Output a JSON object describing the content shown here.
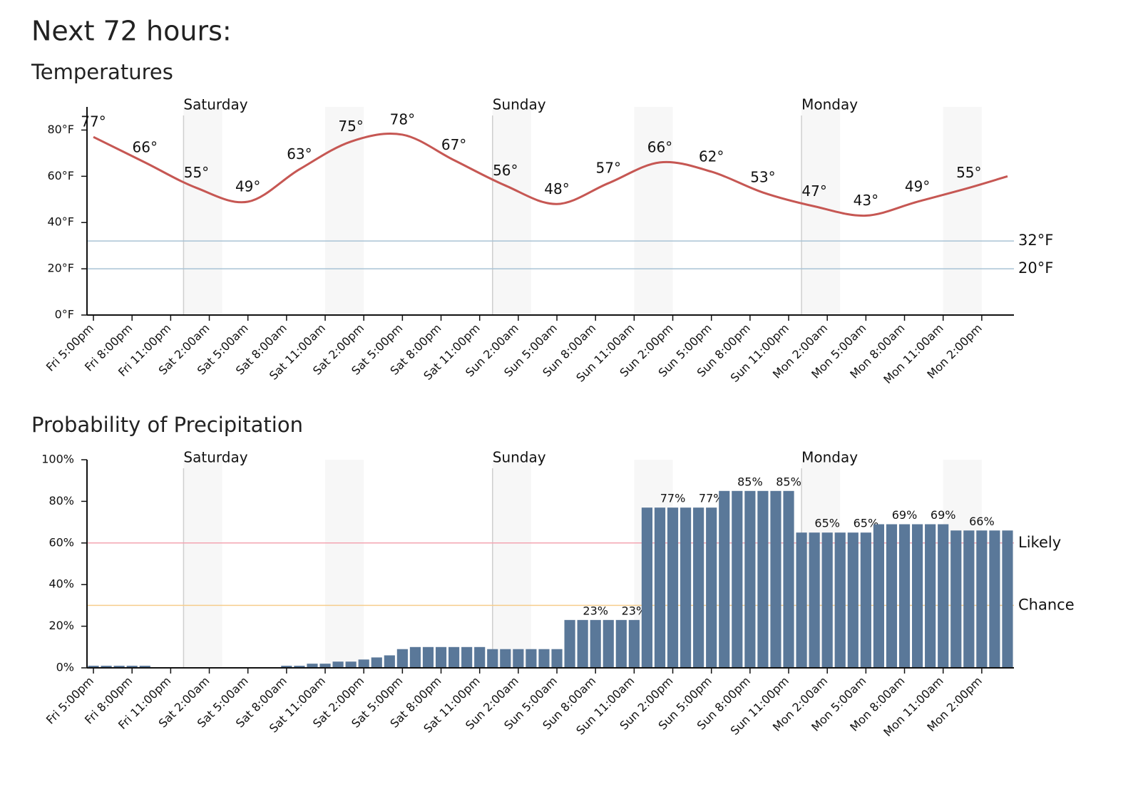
{
  "header": {
    "title": "Next 72 hours:"
  },
  "chart_data": [
    {
      "type": "line",
      "title": "Temperatures",
      "x": [
        0,
        4,
        8,
        12,
        16,
        20,
        24,
        28,
        32,
        36,
        40,
        44,
        48,
        52,
        56,
        60,
        64,
        68,
        71
      ],
      "values": [
        77,
        66,
        55,
        49,
        63,
        75,
        78,
        67,
        56,
        48,
        57,
        66,
        62,
        53,
        47,
        43,
        49,
        55,
        60
      ],
      "value_labels": [
        "77°",
        "66°",
        "55°",
        "49°",
        "63°",
        "75°",
        "78°",
        "67°",
        "56°",
        "48°",
        "57°",
        "66°",
        "62°",
        "53°",
        "47°",
        "43°",
        "49°",
        "55°",
        null
      ],
      "color": "#c65753",
      "xlim": [
        -0.5,
        71.5
      ],
      "xticks": [
        {
          "value": 0,
          "label": "Fri 5:00pm"
        },
        {
          "value": 3,
          "label": "Fri 8:00pm"
        },
        {
          "value": 6,
          "label": "Fri 11:00pm"
        },
        {
          "value": 9,
          "label": "Sat 2:00am"
        },
        {
          "value": 12,
          "label": "Sat 5:00am"
        },
        {
          "value": 15,
          "label": "Sat 8:00am"
        },
        {
          "value": 18,
          "label": "Sat 11:00am"
        },
        {
          "value": 21,
          "label": "Sat 2:00pm"
        },
        {
          "value": 24,
          "label": "Sat 5:00pm"
        },
        {
          "value": 27,
          "label": "Sat 8:00pm"
        },
        {
          "value": 30,
          "label": "Sat 11:00pm"
        },
        {
          "value": 33,
          "label": "Sun 2:00am"
        },
        {
          "value": 36,
          "label": "Sun 5:00am"
        },
        {
          "value": 39,
          "label": "Sun 8:00am"
        },
        {
          "value": 42,
          "label": "Sun 11:00am"
        },
        {
          "value": 45,
          "label": "Sun 2:00pm"
        },
        {
          "value": 48,
          "label": "Sun 5:00pm"
        },
        {
          "value": 51,
          "label": "Sun 8:00pm"
        },
        {
          "value": 54,
          "label": "Sun 11:00pm"
        },
        {
          "value": 57,
          "label": "Mon 2:00am"
        },
        {
          "value": 60,
          "label": "Mon 5:00am"
        },
        {
          "value": 63,
          "label": "Mon 8:00am"
        },
        {
          "value": 66,
          "label": "Mon 11:00am"
        },
        {
          "value": 69,
          "label": "Mon 2:00pm"
        }
      ],
      "ylim": [
        0,
        90
      ],
      "yticks": [
        {
          "value": 0,
          "label": "0°F"
        },
        {
          "value": 20,
          "label": "20°F"
        },
        {
          "value": 40,
          "label": "40°F"
        },
        {
          "value": 60,
          "label": "60°F"
        },
        {
          "value": 80,
          "label": "80°F"
        }
      ],
      "reference_lines": [
        {
          "value": 32,
          "label": "32°F",
          "color": "#a9c3d5",
          "text_color": "#1b2b3b"
        },
        {
          "value": 20,
          "label": "20°F",
          "color": "#a9c3d5",
          "text_color": "#1b2b3b"
        }
      ],
      "day_markers": [
        {
          "value": 7,
          "label": "Saturday"
        },
        {
          "value": 31,
          "label": "Sunday"
        },
        {
          "value": 55,
          "label": "Monday"
        }
      ],
      "shaded_ranges": [
        [
          7,
          10
        ],
        [
          18,
          21
        ],
        [
          31,
          34
        ],
        [
          42,
          45
        ],
        [
          55,
          58
        ],
        [
          66,
          69
        ]
      ]
    },
    {
      "type": "bar",
      "title": "Probability of Precipitation",
      "x": [
        0,
        1,
        2,
        3,
        4,
        5,
        6,
        7,
        8,
        9,
        10,
        11,
        12,
        13,
        14,
        15,
        16,
        17,
        18,
        19,
        20,
        21,
        22,
        23,
        24,
        25,
        26,
        27,
        28,
        29,
        30,
        31,
        32,
        33,
        34,
        35,
        36,
        37,
        38,
        39,
        40,
        41,
        42,
        43,
        44,
        45,
        46,
        47,
        48,
        49,
        50,
        51,
        52,
        53,
        54,
        55,
        56,
        57,
        58,
        59,
        60,
        61,
        62,
        63,
        64,
        65,
        66,
        67,
        68,
        69,
        70,
        71
      ],
      "values": [
        1,
        1,
        1,
        1,
        1,
        0,
        0,
        0,
        0,
        0,
        0,
        0,
        0,
        0,
        0,
        1,
        1,
        2,
        2,
        3,
        3,
        4,
        5,
        6,
        9,
        10,
        10,
        10,
        10,
        10,
        10,
        9,
        9,
        9,
        9,
        9,
        9,
        23,
        23,
        23,
        23,
        23,
        23,
        77,
        77,
        77,
        77,
        77,
        77,
        85,
        85,
        85,
        85,
        85,
        85,
        65,
        65,
        65,
        65,
        65,
        65,
        69,
        69,
        69,
        69,
        69,
        69,
        66,
        66,
        66,
        66,
        66
      ],
      "value_labels": [
        null,
        null,
        null,
        null,
        null,
        null,
        null,
        null,
        null,
        null,
        null,
        null,
        null,
        null,
        null,
        null,
        null,
        null,
        null,
        null,
        null,
        null,
        null,
        null,
        null,
        null,
        null,
        null,
        null,
        null,
        null,
        null,
        null,
        null,
        null,
        null,
        null,
        null,
        null,
        "23%",
        null,
        null,
        "23%",
        null,
        null,
        "77%",
        null,
        null,
        "77%",
        null,
        null,
        "85%",
        null,
        null,
        "85%",
        null,
        null,
        "65%",
        null,
        null,
        "65%",
        null,
        null,
        "69%",
        null,
        null,
        "69%",
        null,
        null,
        "66%",
        null,
        null
      ],
      "color": "#5a7899",
      "xlim": [
        -0.5,
        71.5
      ],
      "xticks": [
        {
          "value": 0,
          "label": "Fri 5:00pm"
        },
        {
          "value": 3,
          "label": "Fri 8:00pm"
        },
        {
          "value": 6,
          "label": "Fri 11:00pm"
        },
        {
          "value": 9,
          "label": "Sat 2:00am"
        },
        {
          "value": 12,
          "label": "Sat 5:00am"
        },
        {
          "value": 15,
          "label": "Sat 8:00am"
        },
        {
          "value": 18,
          "label": "Sat 11:00am"
        },
        {
          "value": 21,
          "label": "Sat 2:00pm"
        },
        {
          "value": 24,
          "label": "Sat 5:00pm"
        },
        {
          "value": 27,
          "label": "Sat 8:00pm"
        },
        {
          "value": 30,
          "label": "Sat 11:00pm"
        },
        {
          "value": 33,
          "label": "Sun 2:00am"
        },
        {
          "value": 36,
          "label": "Sun 5:00am"
        },
        {
          "value": 39,
          "label": "Sun 8:00am"
        },
        {
          "value": 42,
          "label": "Sun 11:00am"
        },
        {
          "value": 45,
          "label": "Sun 2:00pm"
        },
        {
          "value": 48,
          "label": "Sun 5:00pm"
        },
        {
          "value": 51,
          "label": "Sun 8:00pm"
        },
        {
          "value": 54,
          "label": "Sun 11:00pm"
        },
        {
          "value": 57,
          "label": "Mon 2:00am"
        },
        {
          "value": 60,
          "label": "Mon 5:00am"
        },
        {
          "value": 63,
          "label": "Mon 8:00am"
        },
        {
          "value": 66,
          "label": "Mon 11:00am"
        },
        {
          "value": 69,
          "label": "Mon 2:00pm"
        }
      ],
      "ylim": [
        0,
        100
      ],
      "yticks": [
        {
          "value": 0,
          "label": "0%"
        },
        {
          "value": 20,
          "label": "20%"
        },
        {
          "value": 40,
          "label": "40%"
        },
        {
          "value": 60,
          "label": "60%"
        },
        {
          "value": 80,
          "label": "80%"
        },
        {
          "value": 100,
          "label": "100%"
        }
      ],
      "reference_lines": [
        {
          "value": 60,
          "label": "Likely",
          "color": "#f3a5b2",
          "text_color": "#5a0b16"
        },
        {
          "value": 30,
          "label": "Chance",
          "color": "#f6cd8c",
          "text_color": "#4a3000"
        }
      ],
      "day_markers": [
        {
          "value": 7,
          "label": "Saturday"
        },
        {
          "value": 31,
          "label": "Sunday"
        },
        {
          "value": 55,
          "label": "Monday"
        }
      ],
      "shaded_ranges": [
        [
          7,
          10
        ],
        [
          18,
          21
        ],
        [
          31,
          34
        ],
        [
          42,
          45
        ],
        [
          55,
          58
        ],
        [
          66,
          69
        ]
      ]
    }
  ]
}
